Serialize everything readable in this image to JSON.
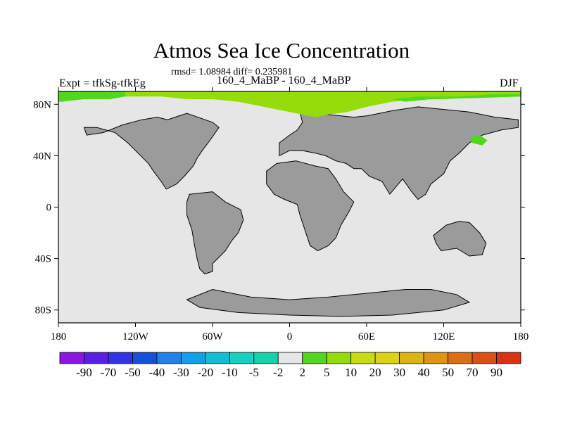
{
  "title": "Atmos Sea Ice Concentration",
  "stats": "rmsd= 1.08984 diff= 0.235981",
  "left_label": "Expt = tfkSg-tfkEg",
  "center_label": "160_4_MaBP - 160_4_MaBP",
  "right_label": "DJF",
  "chart_data": {
    "type": "heatmap",
    "xlim": [
      -180,
      180
    ],
    "ylim": [
      -90,
      90
    ],
    "x_ticks": [
      {
        "value": -180,
        "label": "180"
      },
      {
        "value": -120,
        "label": "120W"
      },
      {
        "value": -60,
        "label": "60W"
      },
      {
        "value": 0,
        "label": "0"
      },
      {
        "value": 60,
        "label": "60E"
      },
      {
        "value": 120,
        "label": "120E"
      },
      {
        "value": 180,
        "label": "180"
      }
    ],
    "y_ticks": [
      {
        "value": 80,
        "label": "80N"
      },
      {
        "value": 40,
        "label": "40N"
      },
      {
        "value": 0,
        "label": "0"
      },
      {
        "value": -40,
        "label": "40S"
      },
      {
        "value": -80,
        "label": "80S"
      }
    ],
    "colorbar": {
      "labels": [
        "-90",
        "-70",
        "-50",
        "-40",
        "-30",
        "-20",
        "-10",
        "-5",
        "-2",
        "2",
        "5",
        "10",
        "20",
        "30",
        "40",
        "50",
        "70",
        "90"
      ],
      "colors": [
        "#8c14e6",
        "#5a1ee6",
        "#3232e6",
        "#1450dc",
        "#1e82e6",
        "#14a0e6",
        "#14bed2",
        "#14d2c3",
        "#14d2aa",
        "#e6e6e6",
        "#50d71e",
        "#96dc0a",
        "#c8dc14",
        "#dcd214",
        "#dcb414",
        "#dc9614",
        "#dc6e14",
        "#dc5014",
        "#dc3214"
      ]
    },
    "colors": {
      "land": "#9b9b9b",
      "ocean_no_change": "#e6e6e6",
      "ice_diff_2_to_5": "#50d71e",
      "ice_diff_5_to_10": "#96dc0a"
    },
    "regions": [
      {
        "name": "north-america",
        "category": "land",
        "lonlat": [
          [
            -103,
            70
          ],
          [
            -95,
            68
          ],
          [
            -80,
            73
          ],
          [
            -60,
            66
          ],
          [
            -55,
            62
          ],
          [
            -62,
            52
          ],
          [
            -68,
            44
          ],
          [
            -72,
            38
          ],
          [
            -75,
            32
          ],
          [
            -82,
            24
          ],
          [
            -88,
            18
          ],
          [
            -96,
            14
          ],
          [
            -100,
            20
          ],
          [
            -106,
            28
          ],
          [
            -110,
            34
          ],
          [
            -118,
            42
          ],
          [
            -126,
            50
          ],
          [
            -136,
            58
          ],
          [
            -150,
            62
          ],
          [
            -160,
            62
          ],
          [
            -158,
            56
          ],
          [
            -145,
            58
          ],
          [
            -130,
            64
          ],
          [
            -115,
            68
          ]
        ]
      },
      {
        "name": "south-america",
        "category": "land",
        "lonlat": [
          [
            -78,
            10
          ],
          [
            -60,
            12
          ],
          [
            -50,
            4
          ],
          [
            -38,
            -2
          ],
          [
            -36,
            -10
          ],
          [
            -40,
            -20
          ],
          [
            -45,
            -26
          ],
          [
            -50,
            -34
          ],
          [
            -56,
            -40
          ],
          [
            -60,
            -44
          ],
          [
            -60,
            -50
          ],
          [
            -66,
            -52
          ],
          [
            -70,
            -48
          ],
          [
            -72,
            -40
          ],
          [
            -74,
            -30
          ],
          [
            -76,
            -18
          ],
          [
            -80,
            -6
          ],
          [
            -80,
            4
          ]
        ]
      },
      {
        "name": "africa",
        "category": "land",
        "lonlat": [
          [
            -18,
            28
          ],
          [
            -10,
            34
          ],
          [
            5,
            36
          ],
          [
            20,
            32
          ],
          [
            30,
            30
          ],
          [
            36,
            22
          ],
          [
            42,
            12
          ],
          [
            50,
            4
          ],
          [
            46,
            -4
          ],
          [
            40,
            -14
          ],
          [
            36,
            -24
          ],
          [
            30,
            -30
          ],
          [
            22,
            -34
          ],
          [
            16,
            -30
          ],
          [
            12,
            -18
          ],
          [
            8,
            -6
          ],
          [
            6,
            2
          ],
          [
            -4,
            6
          ],
          [
            -12,
            10
          ],
          [
            -18,
            18
          ]
        ]
      },
      {
        "name": "eurasia",
        "category": "land",
        "lonlat": [
          [
            8,
            74
          ],
          [
            20,
            73
          ],
          [
            30,
            72
          ],
          [
            50,
            70
          ],
          [
            60,
            71
          ],
          [
            70,
            73
          ],
          [
            80,
            75
          ],
          [
            100,
            78
          ],
          [
            120,
            76
          ],
          [
            140,
            74
          ],
          [
            160,
            70
          ],
          [
            178,
            68
          ],
          [
            178,
            62
          ],
          [
            165,
            60
          ],
          [
            150,
            56
          ],
          [
            140,
            50
          ],
          [
            132,
            42
          ],
          [
            125,
            36
          ],
          [
            120,
            26
          ],
          [
            110,
            18
          ],
          [
            106,
            10
          ],
          [
            100,
            6
          ],
          [
            95,
            12
          ],
          [
            88,
            22
          ],
          [
            78,
            10
          ],
          [
            72,
            20
          ],
          [
            62,
            24
          ],
          [
            56,
            30
          ],
          [
            50,
            30
          ],
          [
            44,
            34
          ],
          [
            36,
            36
          ],
          [
            28,
            40
          ],
          [
            20,
            42
          ],
          [
            10,
            44
          ],
          [
            0,
            44
          ],
          [
            -8,
            40
          ],
          [
            -8,
            50
          ],
          [
            0,
            56
          ],
          [
            6,
            60
          ],
          [
            10,
            66
          ]
        ]
      },
      {
        "name": "antarctica",
        "category": "land",
        "lonlat": [
          [
            -60,
            -64
          ],
          [
            -50,
            -66
          ],
          [
            -30,
            -70
          ],
          [
            0,
            -72
          ],
          [
            30,
            -70
          ],
          [
            60,
            -67
          ],
          [
            90,
            -64
          ],
          [
            110,
            -64
          ],
          [
            130,
            -68
          ],
          [
            140,
            -74
          ],
          [
            120,
            -80
          ],
          [
            80,
            -84
          ],
          [
            40,
            -85
          ],
          [
            0,
            -84
          ],
          [
            -40,
            -82
          ],
          [
            -70,
            -78
          ],
          [
            -80,
            -72
          ]
        ]
      },
      {
        "name": "australia",
        "category": "land",
        "lonlat": [
          [
            112,
            -22
          ],
          [
            122,
            -14
          ],
          [
            132,
            -11
          ],
          [
            140,
            -12
          ],
          [
            148,
            -20
          ],
          [
            153,
            -28
          ],
          [
            150,
            -37
          ],
          [
            140,
            -38
          ],
          [
            130,
            -32
          ],
          [
            118,
            -34
          ],
          [
            114,
            -28
          ]
        ]
      },
      {
        "name": "arctic-ice-band",
        "category": "ice_diff_5_to_10",
        "lonlat": [
          [
            -128,
            90
          ],
          [
            180,
            90
          ],
          [
            180,
            86
          ],
          [
            160,
            86
          ],
          [
            140,
            85
          ],
          [
            120,
            84
          ],
          [
            100,
            84
          ],
          [
            80,
            82
          ],
          [
            60,
            78
          ],
          [
            45,
            74
          ],
          [
            30,
            72
          ],
          [
            20,
            70
          ],
          [
            10,
            72
          ],
          [
            0,
            74
          ],
          [
            -20,
            78
          ],
          [
            -40,
            82
          ],
          [
            -60,
            84
          ],
          [
            -80,
            84
          ],
          [
            -100,
            86
          ],
          [
            -128,
            86
          ]
        ]
      },
      {
        "name": "arctic-ice-edge-west",
        "category": "ice_diff_2_to_5",
        "lonlat": [
          [
            -180,
            90
          ],
          [
            -128,
            90
          ],
          [
            -128,
            86
          ],
          [
            -140,
            84
          ],
          [
            -160,
            84
          ],
          [
            -178,
            82
          ],
          [
            -180,
            82
          ]
        ]
      },
      {
        "name": "arctic-ice-edge-east",
        "category": "ice_diff_2_to_5",
        "lonlat": [
          [
            80,
            84
          ],
          [
            100,
            86
          ],
          [
            130,
            86
          ],
          [
            160,
            88
          ],
          [
            180,
            88
          ],
          [
            180,
            86
          ],
          [
            150,
            85
          ],
          [
            110,
            84
          ],
          [
            90,
            82
          ]
        ]
      },
      {
        "name": "okhotsk-ice",
        "category": "ice_diff_2_to_5",
        "lonlat": [
          [
            140,
            54
          ],
          [
            148,
            56
          ],
          [
            154,
            52
          ],
          [
            150,
            48
          ],
          [
            142,
            50
          ]
        ]
      }
    ]
  }
}
